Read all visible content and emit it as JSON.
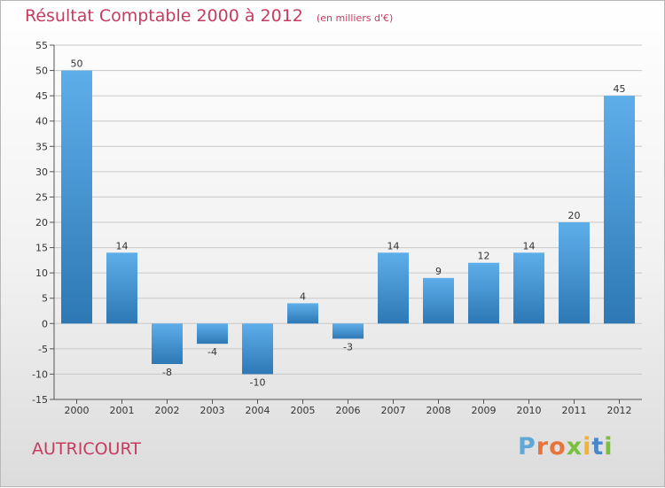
{
  "chart_data": {
    "type": "bar",
    "title": "Résultat Comptable 2000 à 2012",
    "subtitle": "(en milliers d'€)",
    "categories": [
      "2000",
      "2001",
      "2002",
      "2003",
      "2004",
      "2005",
      "2006",
      "2007",
      "2008",
      "2009",
      "2010",
      "2011",
      "2012"
    ],
    "values": [
      50,
      14,
      -8,
      -4,
      -10,
      4,
      -3,
      14,
      9,
      12,
      14,
      20,
      45
    ],
    "ylim": [
      -15,
      55
    ],
    "yticks": [
      -15,
      -10,
      -5,
      0,
      5,
      10,
      15,
      20,
      25,
      30,
      35,
      40,
      45,
      50,
      55
    ],
    "grid": true,
    "xlabel": "",
    "ylabel": ""
  },
  "location": "AUTRICOURT",
  "logo": {
    "text": "Proxiti",
    "colors": [
      "#5fa8d8",
      "#e8743a",
      "#e8743a",
      "#7bbf3f",
      "#f2b233",
      "#4a86c8",
      "#7bbf3f"
    ]
  },
  "colors": {
    "title": "#c73b60",
    "bar_light": "#5eaeea",
    "bar_dark": "#2d78b5",
    "grid": "#c8c8c8"
  }
}
